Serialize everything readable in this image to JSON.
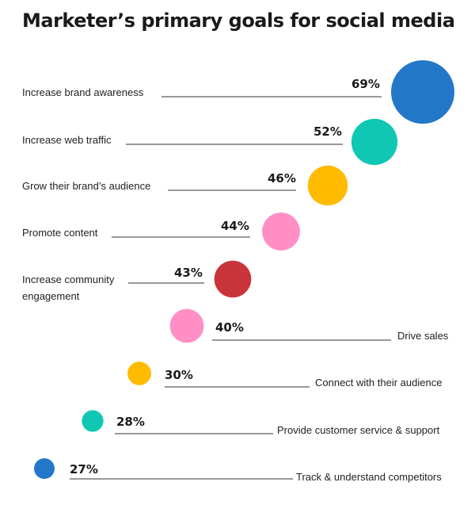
{
  "chart_data": {
    "type": "bubble",
    "title": "Marketer’s primary goals for social media",
    "categories": [
      "Increase brand awareness",
      "Increase web traffic",
      "Grow their brand’s audience",
      "Promote content",
      "Increase community engagement",
      "Drive sales",
      "Connect with their audience",
      "Provide customer service & support",
      "Track & understand competitors"
    ],
    "values": [
      69,
      52,
      46,
      44,
      43,
      40,
      30,
      28,
      27
    ],
    "value_labels": [
      "69%",
      "52%",
      "46%",
      "44%",
      "43%",
      "40%",
      "30%",
      "28%",
      "27%"
    ],
    "label_lines": [
      [
        "Increase brand awareness"
      ],
      [
        "Increase web traffic"
      ],
      [
        "Grow their brand’s audience"
      ],
      [
        "Promote content"
      ],
      [
        "Increase community",
        "engagement"
      ],
      [
        "Drive sales"
      ],
      [
        "Connect with their audience"
      ],
      [
        "Provide customer service & support"
      ],
      [
        "Track & understand competitors"
      ]
    ],
    "label_side": [
      "left",
      "left",
      "left",
      "left",
      "left",
      "right",
      "right",
      "right",
      "right"
    ],
    "colors": [
      "#2277c8",
      "#10c7b4",
      "#ffbb00",
      "#ff8fc4",
      "#c8343a",
      "#ff8fc4",
      "#ffbb00",
      "#10c7b4",
      "#2277c8"
    ],
    "unit": "%"
  }
}
